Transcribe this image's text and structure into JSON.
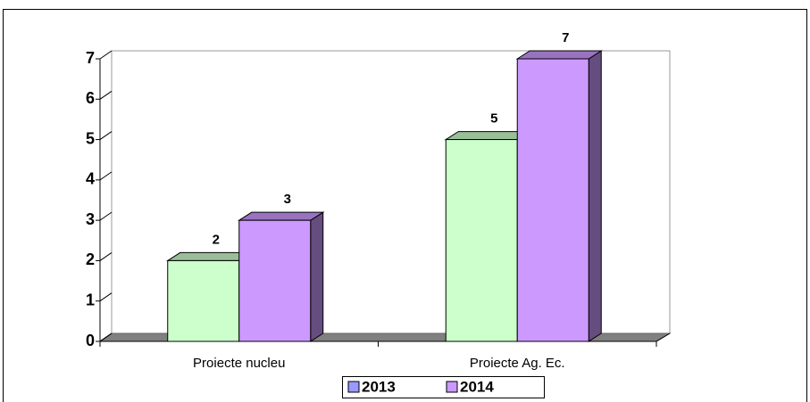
{
  "chart_data": {
    "type": "bar3d",
    "categories": [
      "Proiecte nucleu",
      "Proiecte Ag. Ec."
    ],
    "series": [
      {
        "name": "2013",
        "color": "#ccffcc",
        "values": [
          2,
          5
        ]
      },
      {
        "name": "2014",
        "color": "#cc99ff",
        "values": [
          3,
          7
        ]
      }
    ],
    "ylim": [
      0,
      7
    ],
    "yticks": [
      0,
      1,
      2,
      3,
      4,
      5,
      6,
      7
    ],
    "legend": "bottom"
  }
}
